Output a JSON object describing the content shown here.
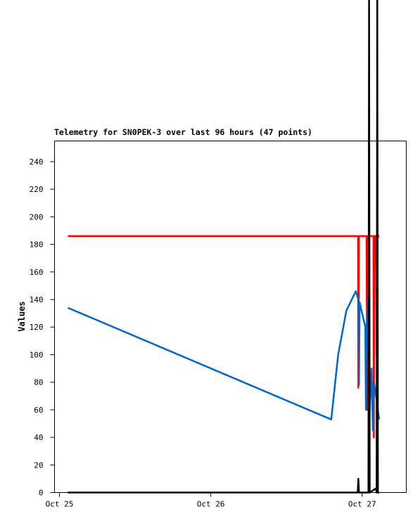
{
  "chart_data": {
    "type": "line",
    "title": "Telemetry for SN0PEK-3 over last 96 hours (47 points)",
    "y_label": "Values",
    "xlim": [
      -0.78,
      55.0
    ],
    "xticks": [
      {
        "value": 0,
        "label": "Oct 25"
      },
      {
        "value": 24,
        "label": "Oct 26"
      },
      {
        "value": 48,
        "label": "Oct 27"
      }
    ],
    "ylim": [
      0,
      255
    ],
    "yticks": [
      0,
      20,
      40,
      60,
      80,
      100,
      120,
      140,
      160,
      180,
      200,
      220,
      240
    ],
    "series": [
      {
        "name": "red",
        "color": "#ff0000",
        "x": [
          1.34,
          47.35,
          47.4,
          47.5,
          48.7,
          48.8,
          48.9,
          49.8,
          49.85,
          49.95,
          50.2,
          50.3,
          50.45,
          50.7
        ],
        "values": [
          186,
          186,
          76,
          186,
          186,
          60,
          186,
          186,
          40,
          186,
          186,
          100,
          186,
          186
        ]
      },
      {
        "name": "blue",
        "color": "#0066cc",
        "x": [
          1.34,
          43.1,
          44.2,
          45.5,
          47.0,
          47.4,
          47.5,
          47.6,
          48.5,
          48.6,
          48.7,
          48.9,
          49.1,
          49.5,
          49.7,
          49.9,
          50.2,
          50.5,
          50.7
        ],
        "values": [
          134,
          53,
          100,
          132,
          146,
          140,
          78,
          138,
          120,
          60,
          118,
          140,
          50,
          90,
          45,
          80,
          70,
          60,
          53
        ]
      },
      {
        "name": "black",
        "color": "#000000",
        "x": [
          1.34,
          47.3,
          47.4,
          47.5,
          49.0,
          49.1,
          49.2,
          50.2,
          50.3,
          50.4,
          50.5,
          50.7
        ],
        "values": [
          0,
          0,
          10,
          0,
          0,
          360,
          0,
          3,
          0,
          360,
          0,
          0
        ]
      }
    ]
  }
}
